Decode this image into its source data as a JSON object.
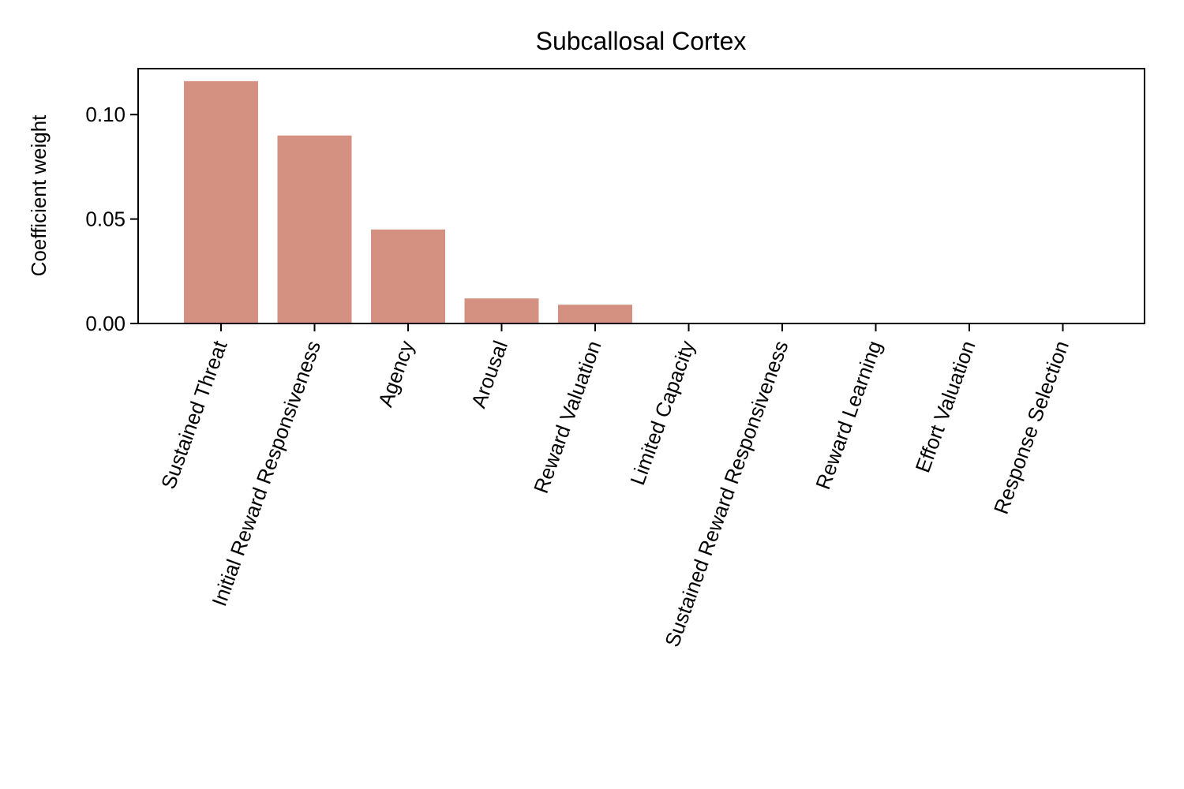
{
  "chart_data": {
    "type": "bar",
    "title": "Subcallosal Cortex",
    "xlabel": "",
    "ylabel": "Coefficient weight",
    "categories": [
      "Sustained Threat",
      "Initial Reward Responsiveness",
      "Agency",
      "Arousal",
      "Reward Valuation",
      "Limited Capacity",
      "Sustained Reward Responsiveness",
      "Reward Learning",
      "Effort Valuation",
      "Response Selection"
    ],
    "values": [
      0.116,
      0.09,
      0.045,
      0.012,
      0.009,
      0.0,
      0.0,
      0.0,
      0.0,
      0.0
    ],
    "ylim": [
      0,
      0.122
    ],
    "yticks": [
      0.0,
      0.05,
      0.1
    ],
    "ytick_labels": [
      "0.00",
      "0.05",
      "0.10"
    ],
    "bar_color": "#d49080",
    "grid": false,
    "legend": "none"
  }
}
